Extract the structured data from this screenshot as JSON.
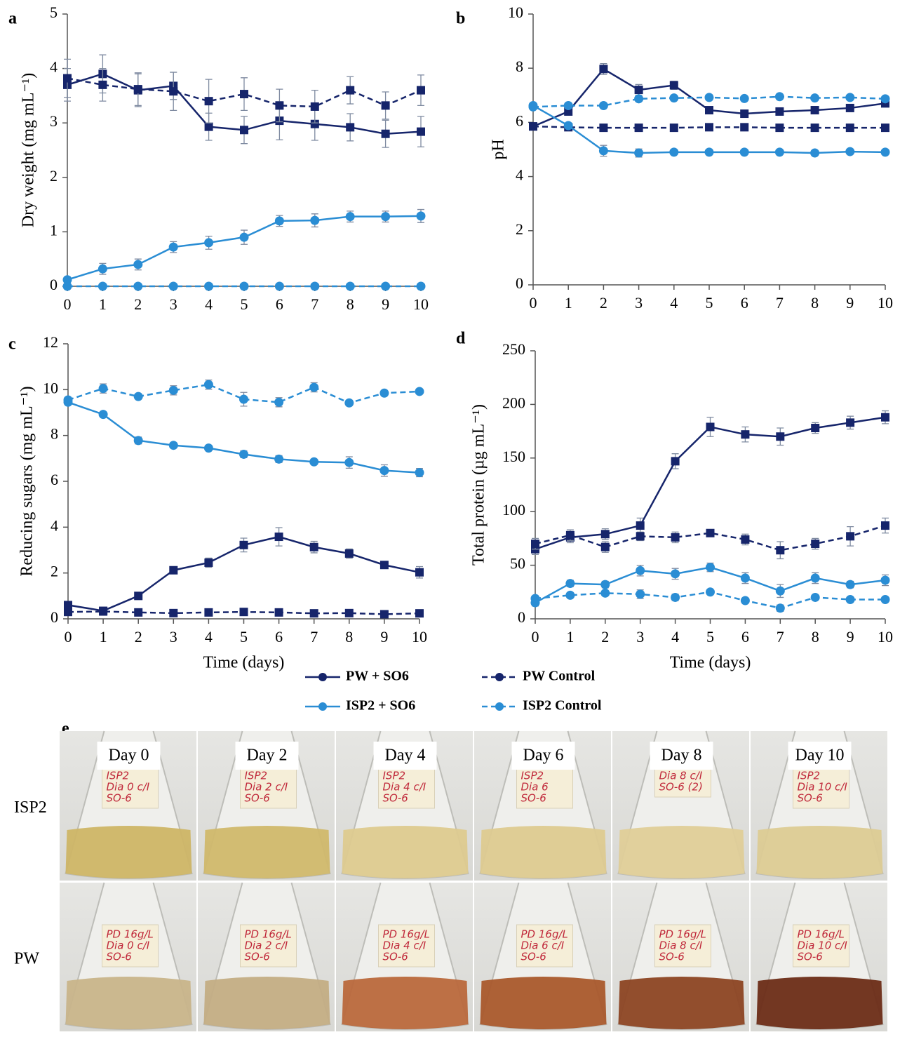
{
  "chart_data": [
    {
      "type": "line",
      "panel": "a",
      "ylabel": "Dry weight (mg mL⁻¹)",
      "x": [
        0,
        1,
        2,
        3,
        4,
        5,
        6,
        7,
        8,
        9,
        10
      ],
      "xlim": [
        0,
        10
      ],
      "xticks": [
        0,
        1,
        2,
        3,
        4,
        5,
        6,
        7,
        8,
        9,
        10
      ],
      "ylim": [
        0,
        5
      ],
      "yticks": [
        0,
        1,
        2,
        3,
        4,
        5
      ],
      "series": [
        {
          "name": "PW + SO6",
          "color": "#16256b",
          "dash": false,
          "marker": "square",
          "values": [
            3.7,
            3.9,
            3.6,
            3.68,
            2.93,
            2.87,
            3.04,
            2.98,
            2.92,
            2.8,
            2.84
          ],
          "errors": [
            0.3,
            0.35,
            0.3,
            0.25,
            0.25,
            0.25,
            0.35,
            0.3,
            0.25,
            0.25,
            0.28
          ]
        },
        {
          "name": "PW Control",
          "color": "#16256b",
          "dash": true,
          "marker": "square",
          "values": [
            3.82,
            3.7,
            3.62,
            3.58,
            3.4,
            3.53,
            3.32,
            3.3,
            3.6,
            3.32,
            3.6
          ],
          "errors": [
            0.35,
            0.3,
            0.3,
            0.35,
            0.4,
            0.3,
            0.3,
            0.3,
            0.25,
            0.25,
            0.28
          ]
        },
        {
          "name": "ISP2 + SO6",
          "color": "#2a8dd4",
          "dash": false,
          "marker": "circle",
          "values": [
            0.12,
            0.32,
            0.4,
            0.72,
            0.8,
            0.9,
            1.2,
            1.21,
            1.28,
            1.28,
            1.29
          ],
          "errors": [
            0.05,
            0.1,
            0.1,
            0.1,
            0.12,
            0.13,
            0.1,
            0.12,
            0.1,
            0.1,
            0.12
          ]
        },
        {
          "name": "ISP2 Control",
          "color": "#2a8dd4",
          "dash": true,
          "marker": "circle",
          "values": [
            0,
            0,
            0,
            0,
            0,
            0,
            0,
            0,
            0,
            0,
            0
          ],
          "errors": [
            0,
            0,
            0,
            0,
            0,
            0,
            0,
            0,
            0,
            0,
            0
          ]
        }
      ]
    },
    {
      "type": "line",
      "panel": "b",
      "ylabel": "pH",
      "x": [
        0,
        1,
        2,
        3,
        4,
        5,
        6,
        7,
        8,
        9,
        10
      ],
      "xlim": [
        0,
        10
      ],
      "xticks": [
        0,
        1,
        2,
        3,
        4,
        5,
        6,
        7,
        8,
        9,
        10
      ],
      "ylim": [
        0,
        10
      ],
      "yticks": [
        0,
        2,
        4,
        6,
        8,
        10
      ],
      "series": [
        {
          "color": "#16256b",
          "dash": false,
          "marker": "square",
          "values": [
            5.85,
            6.4,
            7.97,
            7.2,
            7.37,
            6.45,
            6.32,
            6.4,
            6.45,
            6.53,
            6.7
          ],
          "errors": [
            0.1,
            0.1,
            0.2,
            0.2,
            0.15,
            0.1,
            0.05,
            0.05,
            0.05,
            0.05,
            0.05
          ]
        },
        {
          "color": "#16256b",
          "dash": true,
          "marker": "square",
          "values": [
            5.85,
            5.82,
            5.8,
            5.8,
            5.8,
            5.82,
            5.82,
            5.8,
            5.8,
            5.8,
            5.8
          ],
          "errors": [
            0.05,
            0.05,
            0.05,
            0.05,
            0.05,
            0.05,
            0.05,
            0.05,
            0.05,
            0.05,
            0.05
          ]
        },
        {
          "color": "#2a8dd4",
          "dash": false,
          "marker": "circle",
          "values": [
            6.62,
            5.88,
            4.95,
            4.87,
            4.9,
            4.9,
            4.9,
            4.9,
            4.87,
            4.92,
            4.9
          ],
          "errors": [
            0.05,
            0.05,
            0.2,
            0.15,
            0.05,
            0.05,
            0.05,
            0.05,
            0.05,
            0.05,
            0.05
          ]
        },
        {
          "color": "#2a8dd4",
          "dash": true,
          "marker": "circle",
          "values": [
            6.57,
            6.62,
            6.62,
            6.87,
            6.9,
            6.92,
            6.88,
            6.95,
            6.9,
            6.92,
            6.87
          ],
          "errors": [
            0.05,
            0.1,
            0.05,
            0.05,
            0.05,
            0.05,
            0.05,
            0.05,
            0.05,
            0.05,
            0.05
          ]
        }
      ]
    },
    {
      "type": "line",
      "panel": "c",
      "ylabel": "Reducing sugars (mg mL⁻¹)",
      "xlabel": "Time (days)",
      "x": [
        0,
        1,
        2,
        3,
        4,
        5,
        6,
        7,
        8,
        9,
        10
      ],
      "xlim": [
        0,
        10
      ],
      "xticks": [
        0,
        1,
        2,
        3,
        4,
        5,
        6,
        7,
        8,
        9,
        10
      ],
      "ylim": [
        0,
        12
      ],
      "yticks": [
        0,
        2,
        4,
        6,
        8,
        10,
        12
      ],
      "series": [
        {
          "color": "#16256b",
          "dash": false,
          "marker": "square",
          "values": [
            0.6,
            0.35,
            1.0,
            2.12,
            2.45,
            3.22,
            3.58,
            3.13,
            2.85,
            2.35,
            2.03
          ],
          "errors": [
            0.1,
            0.1,
            0.1,
            0.15,
            0.2,
            0.3,
            0.4,
            0.25,
            0.2,
            0.15,
            0.25
          ]
        },
        {
          "color": "#16256b",
          "dash": true,
          "marker": "square",
          "values": [
            0.3,
            0.32,
            0.28,
            0.25,
            0.28,
            0.3,
            0.28,
            0.24,
            0.25,
            0.2,
            0.24
          ],
          "errors": [
            0.1,
            0.05,
            0.1,
            0.1,
            0.15,
            0.1,
            0.15,
            0.1,
            0.1,
            0.05,
            0.05
          ]
        },
        {
          "color": "#2a8dd4",
          "dash": false,
          "marker": "circle",
          "values": [
            9.45,
            8.92,
            7.78,
            7.57,
            7.45,
            7.18,
            6.97,
            6.85,
            6.82,
            6.47,
            6.38
          ],
          "errors": [
            0.1,
            0.1,
            0.15,
            0.1,
            0.1,
            0.15,
            0.15,
            0.1,
            0.25,
            0.25,
            0.18
          ]
        },
        {
          "color": "#2a8dd4",
          "dash": true,
          "marker": "circle",
          "values": [
            9.55,
            10.05,
            9.7,
            9.97,
            10.22,
            9.58,
            9.45,
            10.1,
            9.42,
            9.85,
            9.92
          ],
          "errors": [
            0.1,
            0.2,
            0.1,
            0.2,
            0.2,
            0.3,
            0.2,
            0.2,
            0.1,
            0.1,
            0.1
          ]
        }
      ]
    },
    {
      "type": "line",
      "panel": "d",
      "ylabel": "Total protein (µg mL⁻¹)",
      "xlabel": "Time (days)",
      "x": [
        0,
        1,
        2,
        3,
        4,
        5,
        6,
        7,
        8,
        9,
        10
      ],
      "xlim": [
        0,
        10
      ],
      "xticks": [
        0,
        1,
        2,
        3,
        4,
        5,
        6,
        7,
        8,
        9,
        10
      ],
      "ylim": [
        0,
        250
      ],
      "yticks": [
        0,
        50,
        100,
        150,
        200,
        250
      ],
      "series": [
        {
          "color": "#16256b",
          "dash": false,
          "marker": "square",
          "values": [
            65,
            76,
            79,
            87,
            147,
            179,
            172,
            170,
            178,
            183,
            188
          ],
          "errors": [
            5,
            5,
            5,
            7,
            7,
            9,
            7,
            8,
            5,
            6,
            6
          ]
        },
        {
          "color": "#16256b",
          "dash": true,
          "marker": "square",
          "values": [
            70,
            78,
            67,
            77,
            76,
            80,
            74,
            64,
            70,
            77,
            87
          ],
          "errors": [
            5,
            5,
            5,
            4,
            5,
            3,
            5,
            8,
            5,
            9,
            7
          ]
        },
        {
          "color": "#2a8dd4",
          "dash": false,
          "marker": "circle",
          "values": [
            15,
            33,
            32,
            45,
            42,
            48,
            38,
            26,
            38,
            32,
            36
          ],
          "errors": [
            3,
            3,
            3,
            5,
            5,
            4,
            5,
            6,
            5,
            3,
            5
          ]
        },
        {
          "color": "#2a8dd4",
          "dash": true,
          "marker": "circle",
          "values": [
            19,
            22,
            24,
            23,
            20,
            25,
            17,
            10,
            20,
            18,
            18
          ],
          "errors": [
            2,
            2,
            2,
            4,
            3,
            2,
            2,
            3,
            2,
            2,
            2
          ]
        }
      ]
    }
  ],
  "photo_panel": {
    "panel": "e",
    "columns": [
      "Day 0",
      "Day 2",
      "Day 4",
      "Day 6",
      "Day 8",
      "Day 10"
    ],
    "rows": [
      {
        "label": "ISP2",
        "notes": [
          [
            "ISP2",
            "Dia 0 c/I",
            "SO-6"
          ],
          [
            "ISP2",
            "Dia 2 c/I",
            "SO-6"
          ],
          [
            "ISP2",
            "Dia 4 c/I",
            "SO-6"
          ],
          [
            "ISP2",
            "Dia 6",
            "SO-6"
          ],
          [
            "Dia 8 c/I",
            "SO-6 (2)"
          ],
          [
            "ISP2",
            "Dia 10 c/I",
            "SO-6"
          ]
        ]
      },
      {
        "label": "PW",
        "notes": [
          [
            "PD 16g/L",
            "Dia 0 c/I",
            "SO-6"
          ],
          [
            "PD 16g/L",
            "Dia 2 c/I",
            "SO-6"
          ],
          [
            "PD 16g/L",
            "Dia 4 c/I",
            "SO-6"
          ],
          [
            "PD 16g/L",
            "Dia 6 c/I",
            "SO-6"
          ],
          [
            "PD 16g/L",
            "Dia 8 c/I",
            "SO-6"
          ],
          [
            "PD 16g/L",
            "Dia 10 c/I",
            "SO-6"
          ]
        ]
      }
    ]
  }
}
